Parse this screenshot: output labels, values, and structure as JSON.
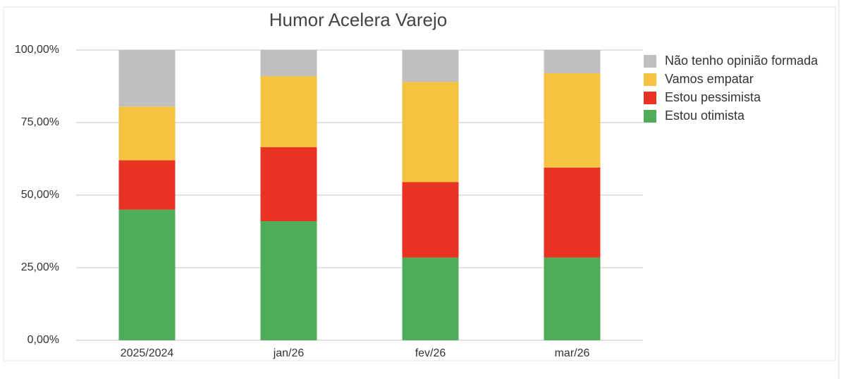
{
  "chart_data": {
    "type": "stacked-bar",
    "title": "Humor Acelera Varejo",
    "categories": [
      "2025/2024",
      "jan/26",
      "fev/26",
      "mar/26"
    ],
    "series": [
      {
        "name": "Estou otimista",
        "color": "#4fac5b",
        "values": [
          45,
          41,
          28.5,
          28.5
        ]
      },
      {
        "name": "Estou pessimista",
        "color": "#e83323",
        "values": [
          17,
          25.5,
          26,
          31
        ]
      },
      {
        "name": "Vamos empatar",
        "color": "#f5c242",
        "values": [
          18.5,
          24.5,
          34.5,
          32.5
        ]
      },
      {
        "name": "Não tenho opinião formada",
        "color": "#bfbfbf",
        "values": [
          19.5,
          9,
          11,
          8
        ]
      }
    ],
    "ylim": [
      0,
      100
    ],
    "yticks": [
      {
        "value": 0,
        "label": "0,00%"
      },
      {
        "value": 25,
        "label": "25,00%"
      },
      {
        "value": 50,
        "label": "50,00%"
      },
      {
        "value": 75,
        "label": "75,00%"
      },
      {
        "value": 100,
        "label": "100,00%"
      }
    ],
    "grid": true,
    "legend": "right"
  }
}
